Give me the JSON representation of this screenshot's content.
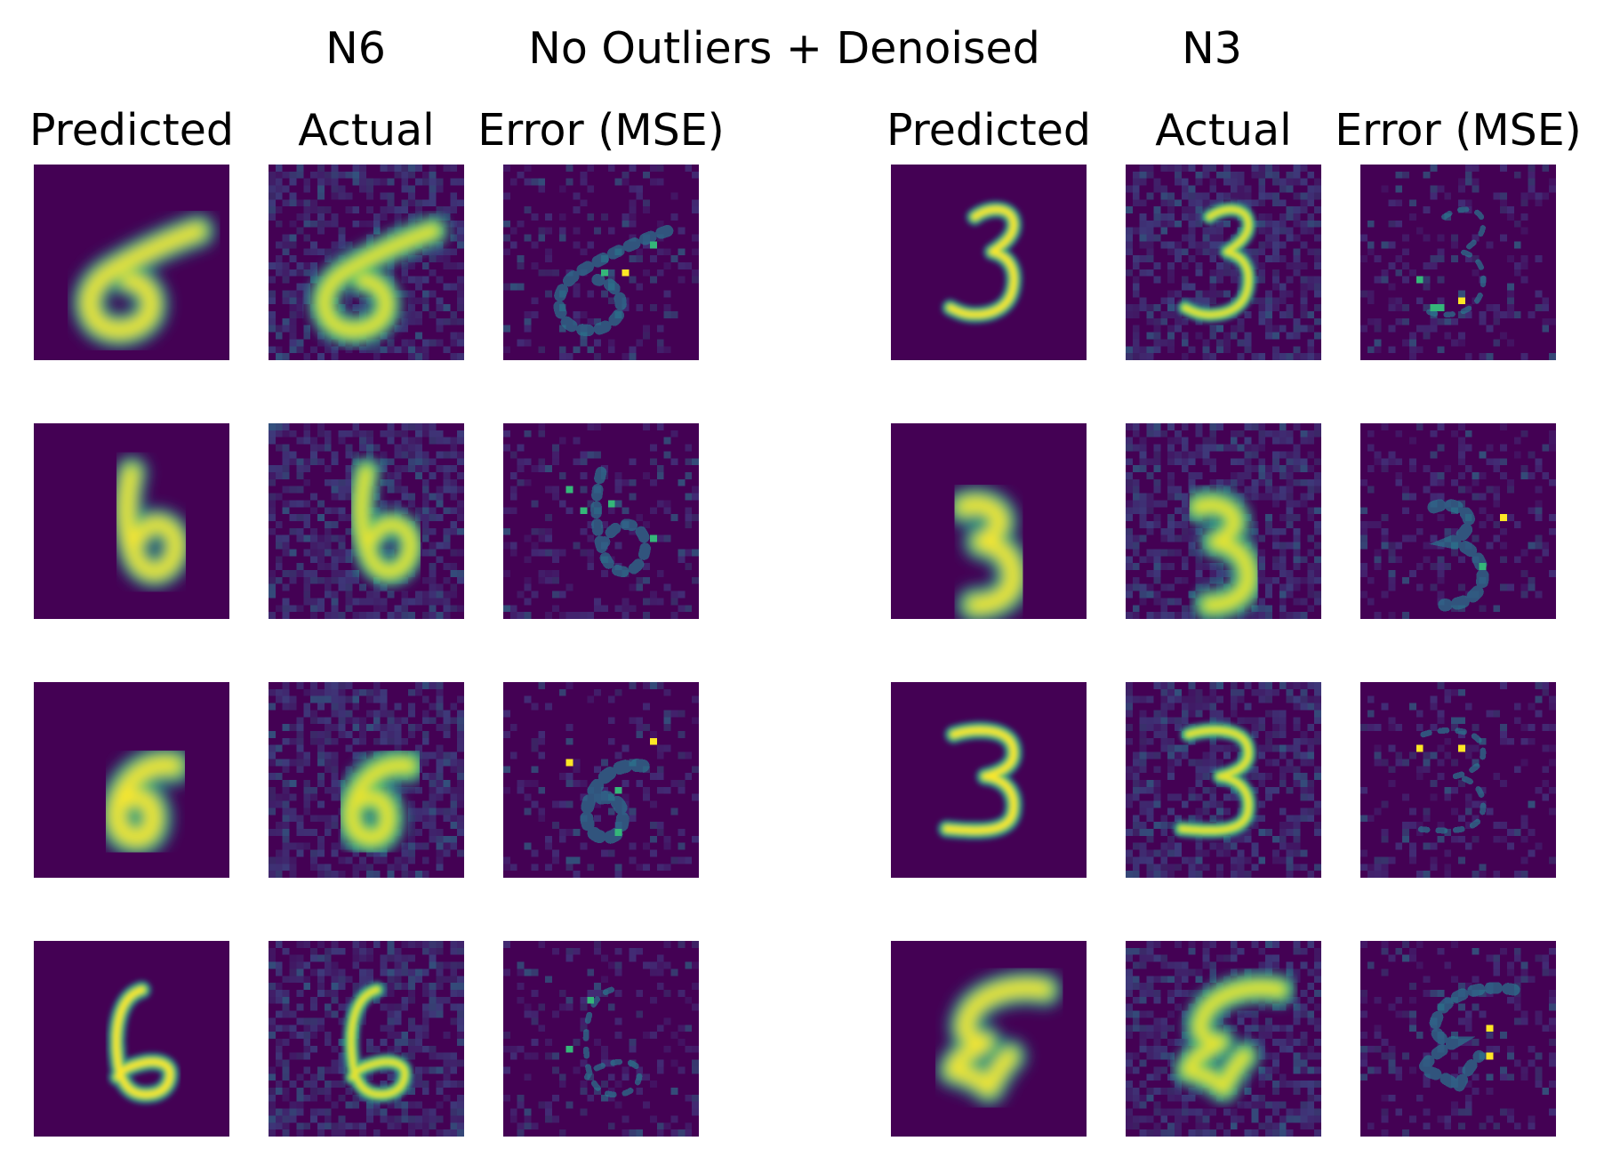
{
  "figure": {
    "title": "No Outliers + Denoised",
    "groups": [
      {
        "label": "N6",
        "columns": [
          "Predicted",
          "Actual",
          "Error (MSE)"
        ],
        "rows": [
          {
            "digit": "6",
            "variant": "wide-loop"
          },
          {
            "digit": "6",
            "variant": "b-shape"
          },
          {
            "digit": "6",
            "variant": "round"
          },
          {
            "digit": "6",
            "variant": "thin"
          }
        ]
      },
      {
        "label": "N3",
        "columns": [
          "Predicted",
          "Actual",
          "Error (MSE)"
        ],
        "rows": [
          {
            "digit": "3",
            "variant": "thin"
          },
          {
            "digit": "3",
            "variant": "thick"
          },
          {
            "digit": "3",
            "variant": "thin"
          },
          {
            "digit": "3",
            "variant": "slanted"
          }
        ]
      }
    ],
    "colors": {
      "background": "#ffffff",
      "cmap_low": "#440154",
      "cmap_mid": "#21918c",
      "cmap_high": "#fde725"
    }
  }
}
